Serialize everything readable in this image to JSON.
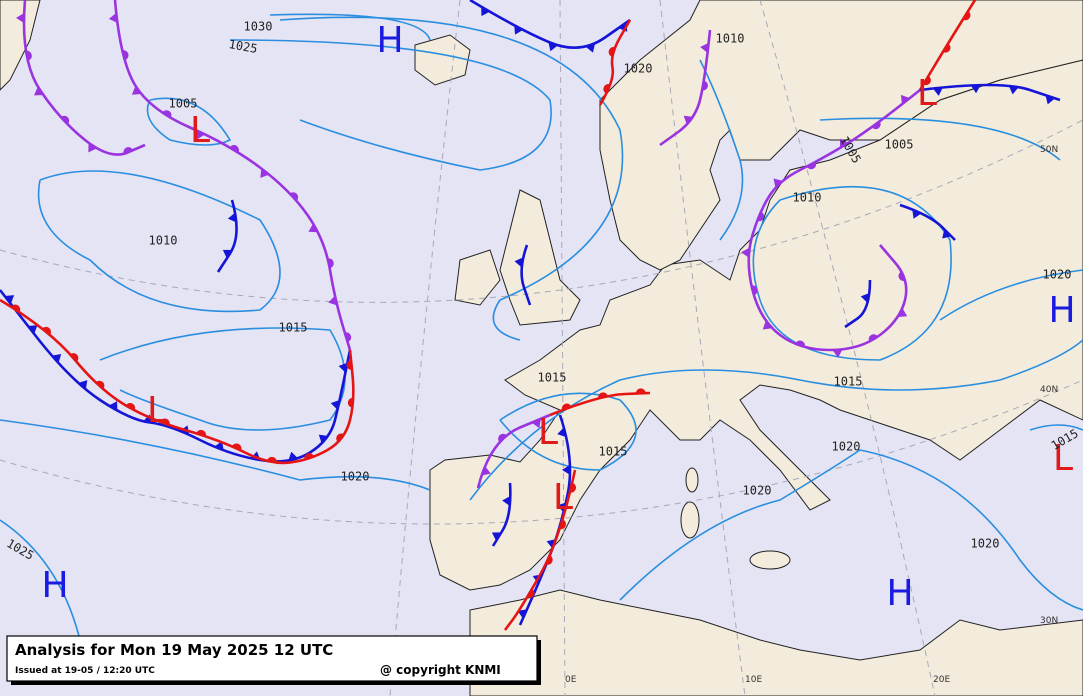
{
  "caption": {
    "title": "Analysis for Mon 19 May 2025 12 UTC",
    "issued": "Issued at 19-05 / 12:20 UTC",
    "copyright": "@ copyright KNMI"
  },
  "pressure_centers": [
    "H",
    "L",
    "H",
    "L",
    "L",
    "L",
    "H",
    "H",
    "L",
    "L"
  ],
  "isobar_labels": [
    "1030",
    "1025",
    "1005",
    "1010",
    "1015",
    "1020",
    "1025",
    "1010",
    "1020",
    "1005",
    "1005",
    "1010",
    "1020",
    "1015",
    "1015",
    "1015",
    "1020",
    "1020",
    "1020",
    "1015"
  ],
  "grid_labels": [
    "50N",
    "40N",
    "30N",
    "0E",
    "10E",
    "20E"
  ]
}
